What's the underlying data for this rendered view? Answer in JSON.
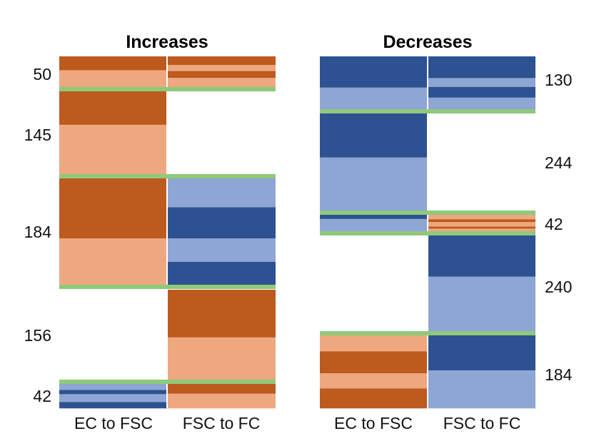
{
  "chart_data": {
    "type": "heatmap",
    "colors": {
      "dark_orange": "#bd5a1e",
      "light_orange": "#eda880",
      "dark_blue": "#2d5291",
      "light_blue": "#8ea6d3",
      "separator": "#8fc97a"
    },
    "panels": [
      {
        "title": "Increases",
        "columns": [
          "EC to FSC",
          "FSC to FC"
        ],
        "groups": [
          {
            "count": "50",
            "cells": [
              [
                [
                  "dark_orange",
                  0.45
                ],
                [
                  "light_orange",
                  0.55
                ]
              ],
              [
                [
                  "dark_orange",
                  0.28
                ],
                [
                  "light_orange",
                  0.2
                ],
                [
                  "dark_orange",
                  0.22
                ],
                [
                  "light_orange",
                  0.3
                ]
              ]
            ]
          },
          {
            "count": "145",
            "cells": [
              [
                [
                  "dark_orange",
                  0.4
                ],
                [
                  "light_orange",
                  0.6
                ]
              ],
              []
            ]
          },
          {
            "count": "184",
            "cells": [
              [
                [
                  "dark_orange",
                  0.56
                ],
                [
                  "light_orange",
                  0.44
                ]
              ],
              [
                [
                  "light_blue",
                  0.27
                ],
                [
                  "dark_blue",
                  0.29
                ],
                [
                  "light_blue",
                  0.22
                ],
                [
                  "dark_blue",
                  0.22
                ]
              ]
            ]
          },
          {
            "count": "156",
            "cells": [
              [],
              [
                [
                  "dark_orange",
                  0.53
                ],
                [
                  "light_orange",
                  0.47
                ]
              ]
            ]
          },
          {
            "count": "42",
            "cells": [
              [
                [
                  "light_blue",
                  0.25
                ],
                [
                  "dark_blue",
                  0.17
                ],
                [
                  "light_blue",
                  0.33
                ],
                [
                  "dark_blue",
                  0.25
                ]
              ],
              [
                [
                  "dark_orange",
                  0.4
                ],
                [
                  "light_orange",
                  0.6
                ]
              ]
            ]
          }
        ]
      },
      {
        "title": "Decreases",
        "columns": [
          "EC to FSC",
          "FSC to FC"
        ],
        "groups": [
          {
            "count": "130",
            "cells": [
              [
                [
                  "dark_blue",
                  0.59
                ],
                [
                  "light_blue",
                  0.41
                ]
              ],
              [
                [
                  "dark_blue",
                  0.41
                ],
                [
                  "light_blue",
                  0.17
                ],
                [
                  "dark_blue",
                  0.2
                ],
                [
                  "light_blue",
                  0.22
                ]
              ]
            ]
          },
          {
            "count": "244",
            "cells": [
              [
                [
                  "dark_blue",
                  0.45
                ],
                [
                  "light_blue",
                  0.55
                ]
              ],
              []
            ]
          },
          {
            "count": "42",
            "cells": [
              [
                [
                  "dark_blue",
                  0.25
                ],
                [
                  "light_blue",
                  0.75
                ]
              ],
              [
                [
                  "light_orange",
                  0.28
                ],
                [
                  "dark_orange",
                  0.16
                ],
                [
                  "light_orange",
                  0.28
                ],
                [
                  "dark_orange",
                  0.12
                ],
                [
                  "light_orange",
                  0.16
                ]
              ]
            ]
          },
          {
            "count": "240",
            "cells": [
              [],
              [
                [
                  "dark_blue",
                  0.43
                ],
                [
                  "light_blue",
                  0.57
                ]
              ]
            ]
          },
          {
            "count": "184",
            "cells": [
              [
                [
                  "light_orange",
                  0.22
                ],
                [
                  "dark_orange",
                  0.3
                ],
                [
                  "light_orange",
                  0.21
                ],
                [
                  "dark_orange",
                  0.27
                ]
              ],
              [
                [
                  "dark_blue",
                  0.48
                ],
                [
                  "light_blue",
                  0.52
                ]
              ]
            ]
          }
        ]
      }
    ]
  }
}
